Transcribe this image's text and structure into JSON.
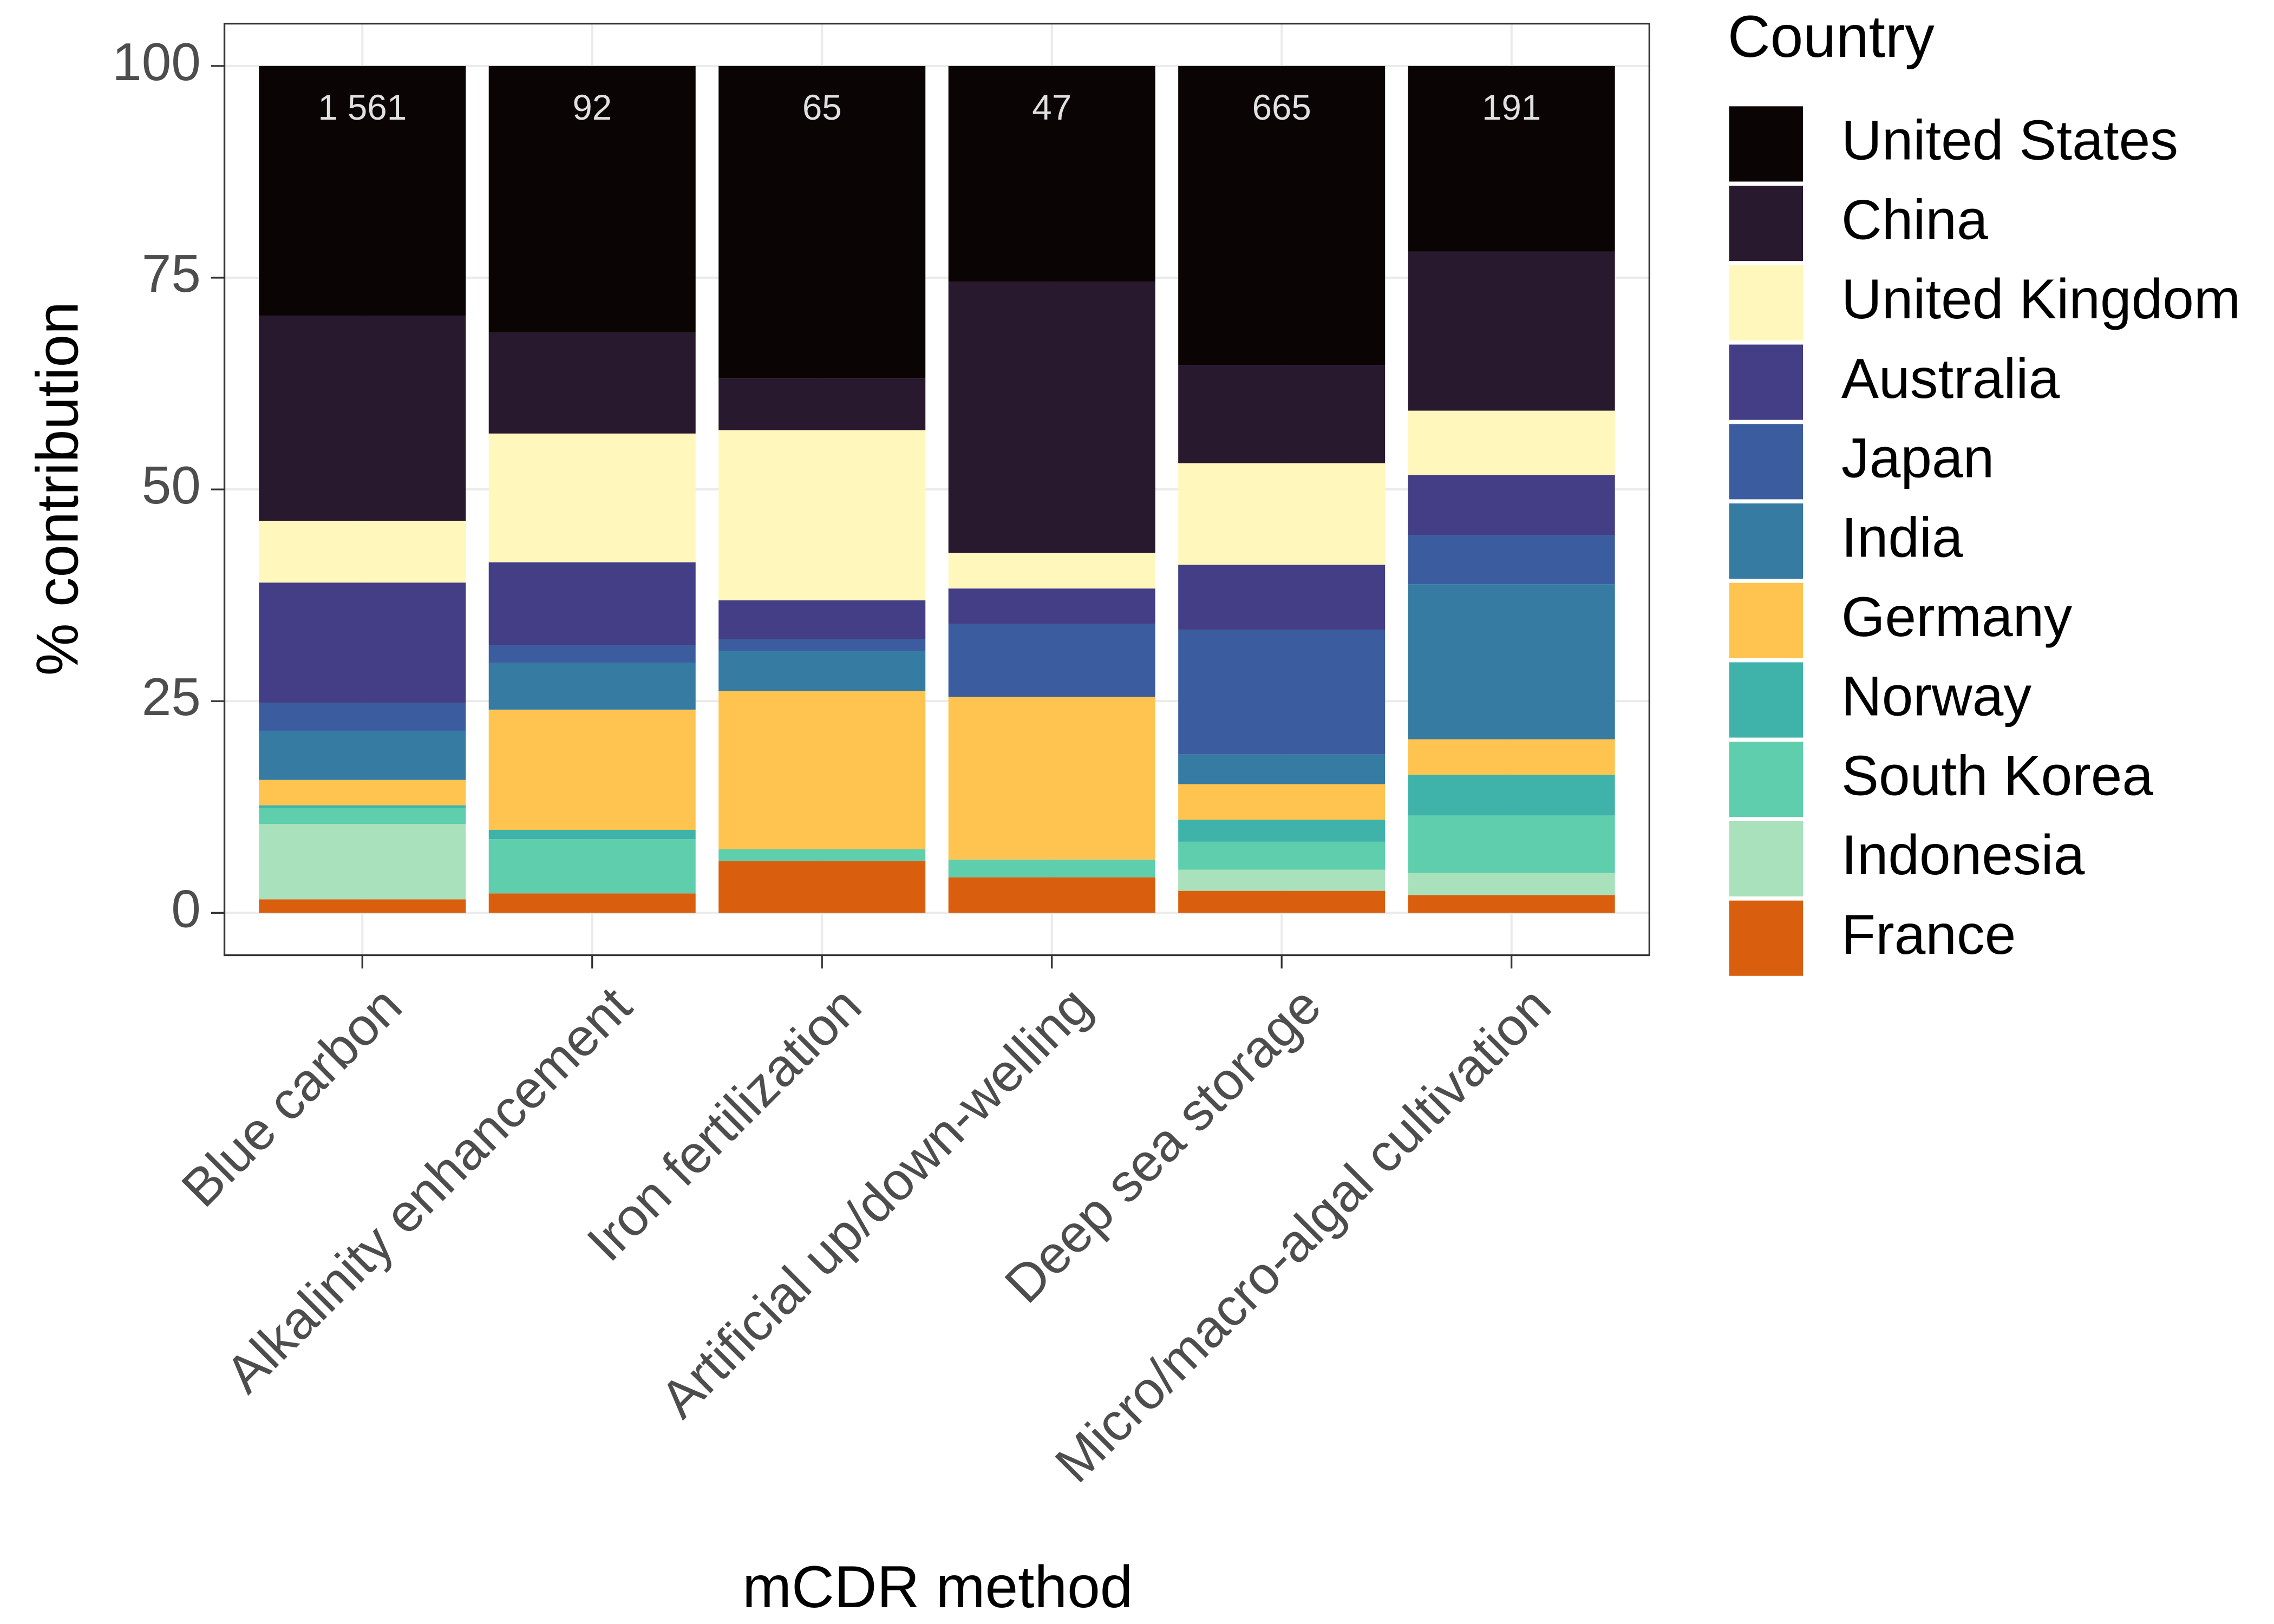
{
  "chart_data": {
    "type": "stacked_bar",
    "x_label": "mCDR method",
    "y_label": "% contribution",
    "legend_title": "Country",
    "legend": "right",
    "grid": true,
    "categories": [
      "Blue carbon",
      "Alkalinity enhancement",
      "Iron fertilization",
      "Artificial up/down-welling",
      "Deep sea storage",
      "Micro/macro-algal cultivation"
    ],
    "ylim": [
      -5,
      105
    ],
    "yticks": [
      0,
      25,
      50,
      75,
      100
    ],
    "series": [
      {
        "name": "United States",
        "color": "#0b0405",
        "values": [
          29.5,
          31.5,
          36.9,
          25.5,
          35.3,
          21.9
        ]
      },
      {
        "name": "China",
        "color": "#28192f",
        "values": [
          24.2,
          11.9,
          6.1,
          32.0,
          11.6,
          18.8
        ]
      },
      {
        "name": "United Kingdom",
        "color": "#fff7bc",
        "values": [
          7.3,
          15.2,
          20.1,
          4.2,
          12.0,
          7.6
        ]
      },
      {
        "name": "Australia",
        "color": "#433e85",
        "values": [
          14.2,
          9.8,
          4.6,
          4.2,
          7.7,
          7.1
        ]
      },
      {
        "name": "Japan",
        "color": "#3b5da0",
        "values": [
          3.3,
          2.1,
          1.4,
          8.6,
          14.7,
          5.8
        ]
      },
      {
        "name": "India",
        "color": "#357ba2",
        "values": [
          5.8,
          5.5,
          4.7,
          0,
          3.5,
          18.3
        ]
      },
      {
        "name": "Germany",
        "color": "#fec44f",
        "values": [
          3.0,
          14.2,
          18.7,
          19.2,
          4.2,
          4.2
        ]
      },
      {
        "name": "Norway",
        "color": "#3fb3a9",
        "values": [
          0.3,
          1.1,
          0,
          0,
          2.6,
          4.8
        ]
      },
      {
        "name": "South Korea",
        "color": "#5fcead",
        "values": [
          1.9,
          6.4,
          1.4,
          2.1,
          3.3,
          6.8
        ]
      },
      {
        "name": "Indonesia",
        "color": "#a8e1bc",
        "values": [
          8.9,
          0,
          0,
          0,
          2.5,
          2.6
        ]
      },
      {
        "name": "France",
        "color": "#d95f0e",
        "values": [
          1.6,
          2.3,
          6.1,
          4.2,
          2.6,
          2.1
        ]
      }
    ],
    "totals": {
      "values": [
        1561,
        92,
        65,
        47,
        665,
        191
      ],
      "value_labels": [
        "1 561",
        "92",
        "65",
        "47",
        "665",
        "191"
      ]
    }
  }
}
